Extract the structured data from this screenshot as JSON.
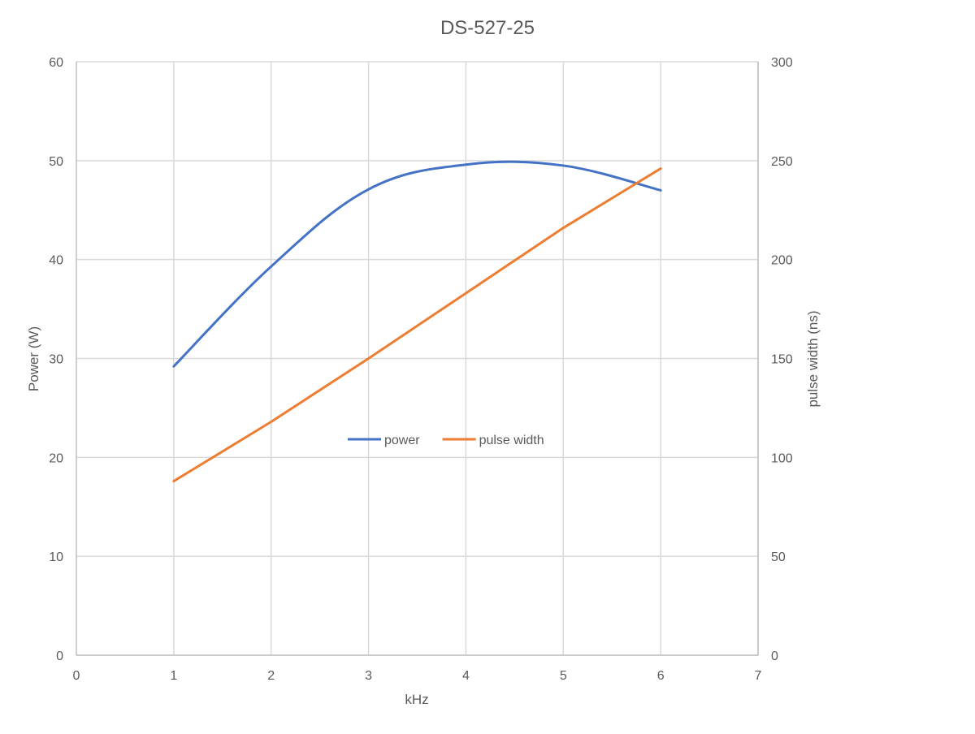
{
  "chart_data": {
    "type": "line",
    "title": "DS-527-25",
    "xlabel": "kHz",
    "ylabel": "Power (W)",
    "y2label": "pulse width (ns)",
    "xlim": [
      0,
      7
    ],
    "ylim": [
      0,
      60
    ],
    "y2lim": [
      0,
      300
    ],
    "xticks": [
      "0",
      "1",
      "2",
      "3",
      "4",
      "5",
      "6",
      "7"
    ],
    "yticks": [
      "0",
      "10",
      "20",
      "30",
      "40",
      "50",
      "60"
    ],
    "y2ticks": [
      "0",
      "50",
      "100",
      "150",
      "200",
      "250",
      "300"
    ],
    "grid": true,
    "legend_position": "center",
    "series": [
      {
        "name": "power",
        "axis": "left",
        "color": "#4472C4",
        "smooth": true,
        "x": [
          1,
          2,
          3,
          4,
          5,
          6
        ],
        "y": [
          29.2,
          39.3,
          47.1,
          49.6,
          49.5,
          47.0
        ]
      },
      {
        "name": "pulse width",
        "axis": "right",
        "color": "#ED7D31",
        "smooth": false,
        "x": [
          1,
          2,
          3,
          4,
          5,
          6
        ],
        "y": [
          88,
          118,
          150,
          183,
          216,
          246
        ]
      }
    ]
  }
}
